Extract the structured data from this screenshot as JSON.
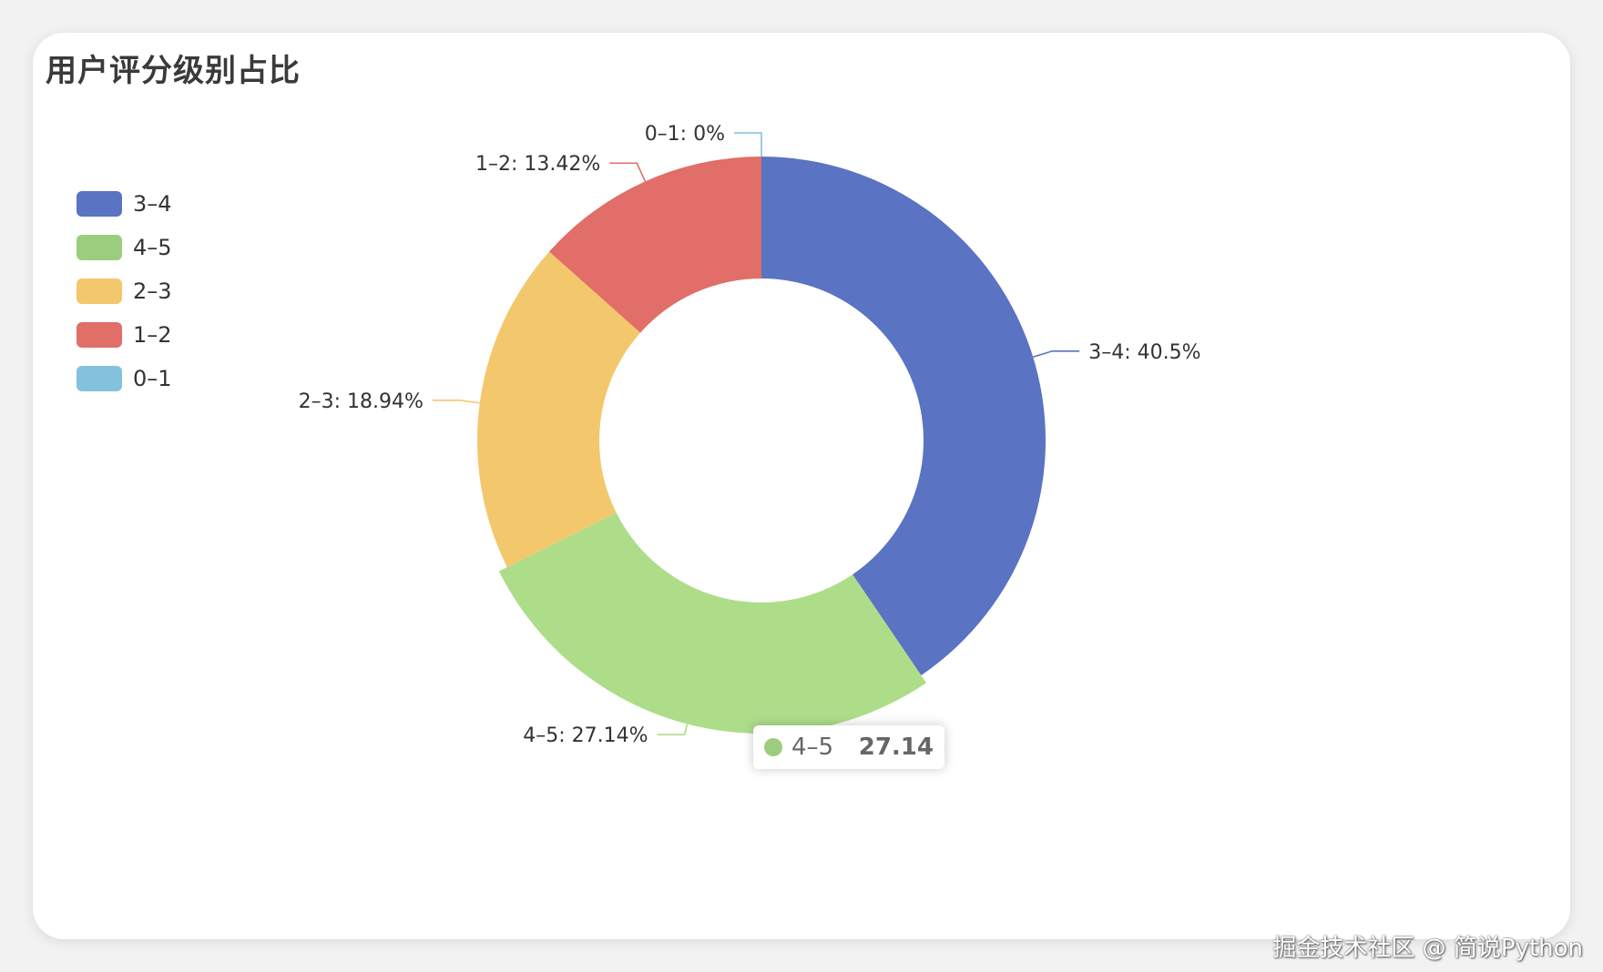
{
  "title": "用户评分级别占比",
  "watermark": "掘金技术社区 @ 简说Python",
  "tooltip": {
    "name": "4–5",
    "value": "27.14",
    "color": "#9ccd7e"
  },
  "chart_data": {
    "type": "pie",
    "title": "用户评分级别占比",
    "legend_position": "left",
    "series": [
      {
        "name": "3–4",
        "value": 40.5,
        "label": "3–4: 40.5%",
        "color": "#5a73c2"
      },
      {
        "name": "4–5",
        "value": 27.14,
        "label": "4–5: 27.14%",
        "color": "#aedd8a"
      },
      {
        "name": "2–3",
        "value": 18.94,
        "label": "2–3: 18.94%",
        "color": "#f3c86c"
      },
      {
        "name": "1–2",
        "value": 13.42,
        "label": "1–2: 13.42%",
        "color": "#e16e68"
      },
      {
        "name": "0–1",
        "value": 0,
        "label": "0–1: 0%",
        "color": "#84c1dd"
      }
    ],
    "legend_colors": [
      "#5a73c2",
      "#9ccd7e",
      "#f3c86c",
      "#e16e68",
      "#84c1dd"
    ]
  }
}
